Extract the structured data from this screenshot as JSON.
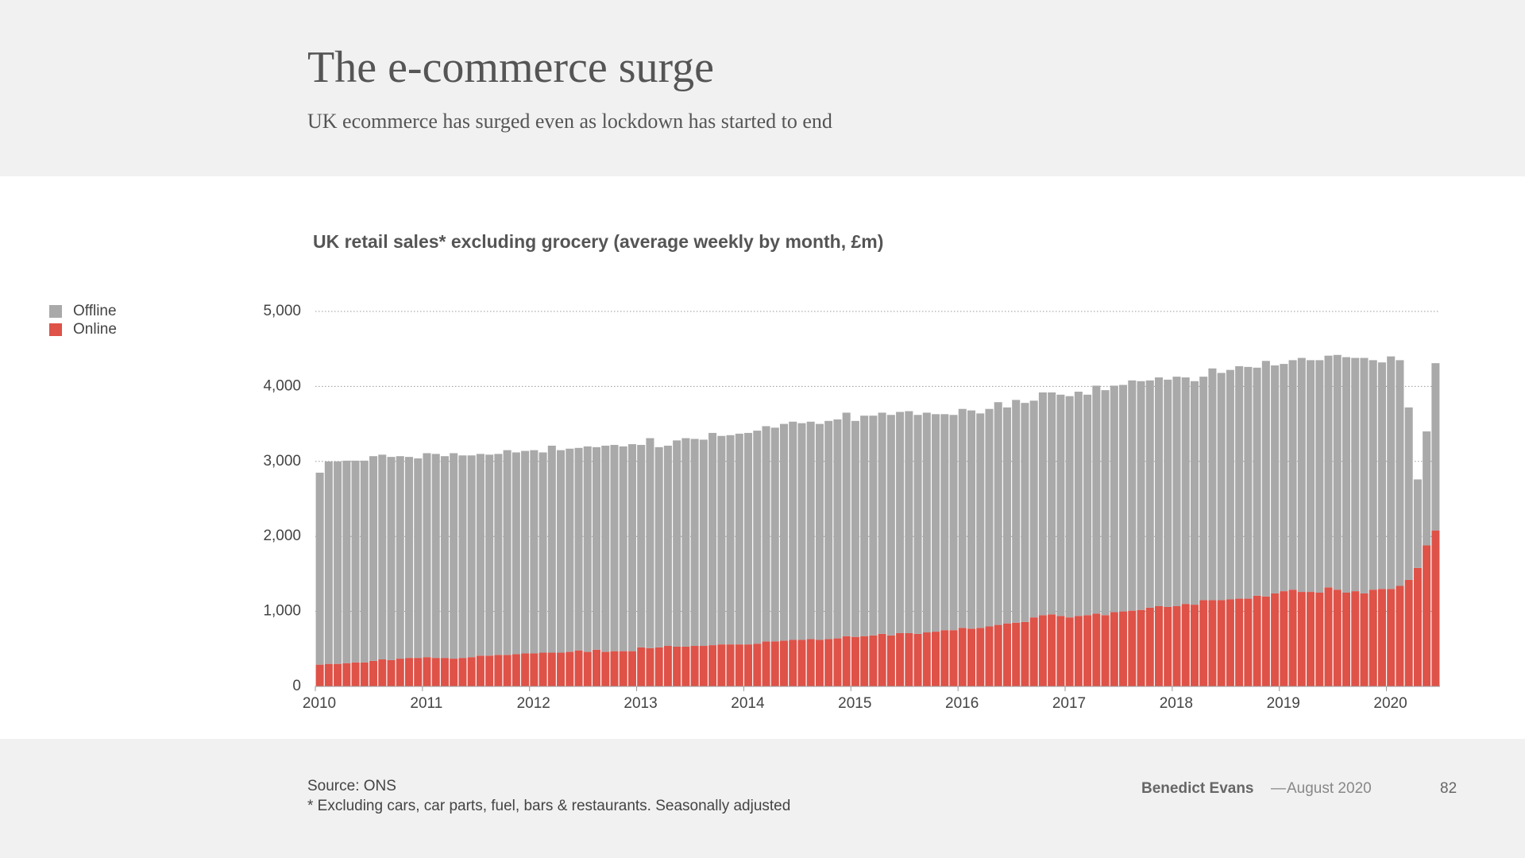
{
  "header": {
    "title": "The e-commerce surge",
    "subtitle": "UK ecommerce has surged even as lockdown has started to end"
  },
  "chart_data": {
    "type": "bar",
    "stacked": true,
    "title": "UK retail sales* excluding grocery (average weekly by month, £m)",
    "categories": [
      "2010",
      null,
      null,
      null,
      null,
      null,
      null,
      null,
      null,
      null,
      null,
      null,
      "2011",
      null,
      null,
      null,
      null,
      null,
      null,
      null,
      null,
      null,
      null,
      null,
      "2012",
      null,
      null,
      null,
      null,
      null,
      null,
      null,
      null,
      null,
      null,
      null,
      "2013",
      null,
      null,
      null,
      null,
      null,
      null,
      null,
      null,
      null,
      null,
      null,
      "2014",
      null,
      null,
      null,
      null,
      null,
      null,
      null,
      null,
      null,
      null,
      null,
      "2015",
      null,
      null,
      null,
      null,
      null,
      null,
      null,
      null,
      null,
      null,
      null,
      "2016",
      null,
      null,
      null,
      null,
      null,
      null,
      null,
      null,
      null,
      null,
      null,
      "2017",
      null,
      null,
      null,
      null,
      null,
      null,
      null,
      null,
      null,
      null,
      null,
      "2018",
      null,
      null,
      null,
      null,
      null,
      null,
      null,
      null,
      null,
      null,
      null,
      "2019",
      null,
      null,
      null,
      null,
      null,
      null,
      null,
      null,
      null,
      null,
      null,
      "2020",
      null,
      null,
      null,
      null,
      null
    ],
    "series": [
      {
        "name": "Offline",
        "color": "#a9a9a9",
        "values": [
          2560,
          2700,
          2700,
          2700,
          2690,
          2690,
          2730,
          2730,
          2710,
          2700,
          2680,
          2660,
          2720,
          2720,
          2690,
          2740,
          2700,
          2690,
          2690,
          2680,
          2680,
          2730,
          2690,
          2700,
          2710,
          2670,
          2760,
          2700,
          2710,
          2700,
          2740,
          2700,
          2750,
          2750,
          2730,
          2760,
          2700,
          2800,
          2670,
          2670,
          2750,
          2780,
          2760,
          2750,
          2830,
          2780,
          2790,
          2810,
          2820,
          2840,
          2870,
          2850,
          2890,
          2910,
          2890,
          2900,
          2880,
          2910,
          2920,
          2980,
          2880,
          2940,
          2930,
          2950,
          2940,
          2950,
          2960,
          2920,
          2930,
          2900,
          2880,
          2870,
          2920,
          2910,
          2860,
          2900,
          2970,
          2880,
          2970,
          2920,
          2890,
          2970,
          2960,
          2950,
          2950,
          2990,
          2940,
          3040,
          3000,
          3020,
          3020,
          3070,
          3050,
          3030,
          3050,
          3030,
          3060,
          3020,
          2980,
          2980,
          3090,
          3030,
          3060,
          3100,
          3090,
          3040,
          3140,
          3040,
          3030,
          3060,
          3120,
          3090,
          3100,
          3090,
          3130,
          3140,
          3110,
          3140,
          3060,
          3020,
          3100,
          3010,
          2300,
          1180,
          1520,
          2230
        ]
      },
      {
        "name": "Online",
        "color": "#de5248",
        "values": [
          290,
          300,
          300,
          310,
          320,
          320,
          340,
          360,
          350,
          370,
          380,
          380,
          390,
          380,
          380,
          370,
          380,
          390,
          410,
          410,
          420,
          420,
          430,
          440,
          440,
          450,
          450,
          450,
          460,
          480,
          460,
          490,
          460,
          470,
          470,
          470,
          520,
          510,
          520,
          540,
          530,
          530,
          540,
          540,
          550,
          560,
          560,
          560,
          560,
          570,
          600,
          600,
          610,
          620,
          620,
          630,
          620,
          630,
          640,
          670,
          660,
          670,
          680,
          700,
          680,
          710,
          710,
          700,
          720,
          730,
          750,
          750,
          780,
          770,
          780,
          800,
          820,
          840,
          850,
          860,
          920,
          950,
          960,
          940,
          920,
          940,
          950,
          970,
          950,
          990,
          1000,
          1010,
          1020,
          1050,
          1070,
          1060,
          1070,
          1100,
          1090,
          1150,
          1150,
          1150,
          1160,
          1170,
          1170,
          1210,
          1200,
          1240,
          1270,
          1290,
          1260,
          1260,
          1250,
          1320,
          1290,
          1250,
          1270,
          1240,
          1290,
          1300,
          1300,
          1340,
          1420,
          1580,
          1880,
          2080
        ]
      }
    ],
    "ylim": [
      0,
      5000
    ],
    "yticks": [
      0,
      {
        "value": 1000,
        "label": "1,000"
      },
      {
        "value": 2000,
        "label": "2,000"
      },
      {
        "value": 3000,
        "label": "3,000"
      },
      {
        "value": 4000,
        "label": "4,000"
      },
      {
        "value": 5000,
        "label": "5,000"
      }
    ],
    "grid": true,
    "legend": "left"
  },
  "footer": {
    "source": "Source: ONS",
    "note": "* Excluding cars, car parts, fuel, bars & restaurants. Seasonally adjusted",
    "author": "Benedict Evans",
    "date": "August 2020",
    "page": "82"
  }
}
